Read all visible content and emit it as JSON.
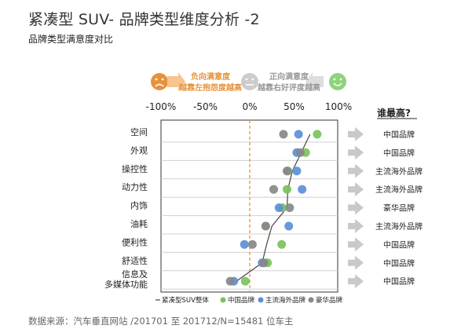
{
  "header": {
    "title": "紧凑型 SUV- 品牌类型维度分析 -2",
    "subtitle": "品牌类型满意度对比"
  },
  "scale_note": {
    "negative": [
      "负向满意度",
      "越靠左抱怨度越高"
    ],
    "positive": [
      "正向满意度",
      "越靠右好评度越高"
    ],
    "negative_color": "#e7923a",
    "positive_color": "#999999",
    "neutral_color": "#cccccc",
    "good_color": "#8fd27a"
  },
  "who_higher": {
    "title": "谁最高?",
    "answers": [
      "中国品牌",
      "中国品牌",
      "主流海外品牌",
      "主流海外品牌",
      "豪华品牌",
      "主流海外品牌",
      "中国品牌",
      "中国品牌",
      "中国品牌"
    ]
  },
  "footer": {
    "source": "数据来源：汽车垂直网站 /201701 至 201712/N=15481 位车主"
  },
  "chart_data": {
    "type": "scatter",
    "categories": [
      "空间",
      "外观",
      "操控性",
      "动力性",
      "内饰",
      "油耗",
      "便利性",
      "舒适性",
      "信息及\n多媒体功能"
    ],
    "x_ticks": [
      "-100%",
      "-50%",
      "0%",
      "50%",
      "100%"
    ],
    "xlim": [
      -100,
      100
    ],
    "reference_line": 0,
    "series": [
      {
        "name": "紧凑型SUV整体",
        "color": "#444444",
        "marker": "line",
        "values": [
          68,
          58,
          48,
          43,
          42,
          25,
          19,
          14,
          -15
        ]
      },
      {
        "name": "中国品牌",
        "color": "#7ac35b",
        "marker": "dot",
        "values": [
          76,
          63,
          43,
          42,
          37,
          18,
          36,
          20,
          -5
        ]
      },
      {
        "name": "主流海外品牌",
        "color": "#5b8fd9",
        "marker": "dot",
        "values": [
          55,
          53,
          53,
          59,
          33,
          44,
          -6,
          14,
          -18
        ]
      },
      {
        "name": "豪华品牌",
        "color": "#888888",
        "marker": "dot",
        "values": [
          38,
          57,
          42,
          27,
          45,
          18,
          3,
          16,
          -22
        ]
      }
    ]
  }
}
